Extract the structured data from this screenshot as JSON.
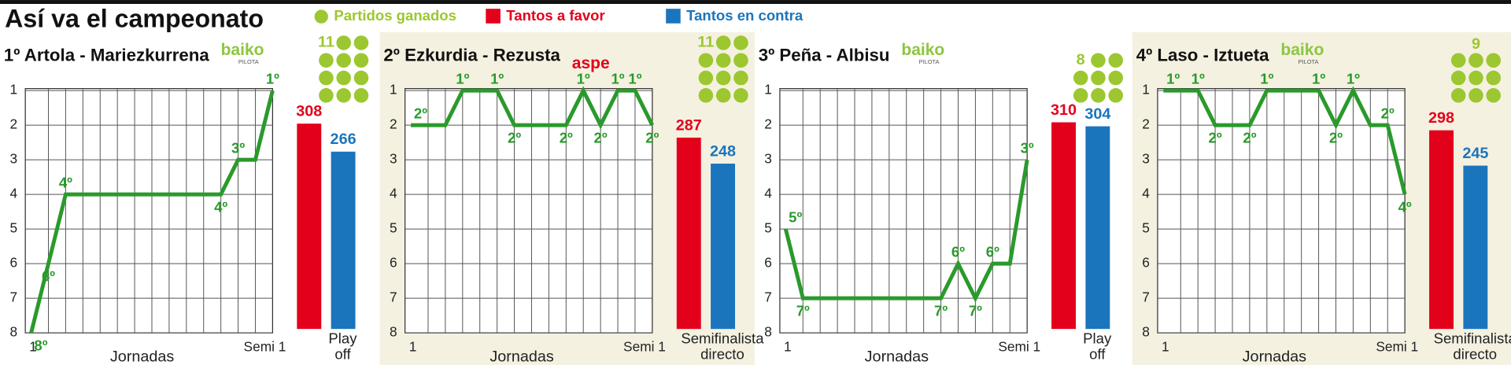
{
  "title": "Así va el campeonato",
  "legend": [
    {
      "name": "Partidos ganados",
      "color": "#9cc730"
    },
    {
      "name": "Tantos a favor",
      "color": "#e3001b"
    },
    {
      "name": "Tantos en contra",
      "color": "#1b75bc"
    }
  ],
  "chart_data": [
    {
      "type": "line",
      "title": "1º Artola - Mariezkurrena",
      "logo": "baiko",
      "logo_sub": "PILOTA",
      "categories": [
        "1",
        null,
        null,
        null,
        null,
        null,
        null,
        null,
        null,
        null,
        null,
        null,
        null,
        null,
        "Semi 1"
      ],
      "xlabel": "Jornadas",
      "ylim": [
        8,
        1
      ],
      "yticks": [
        1,
        2,
        3,
        4,
        5,
        6,
        7,
        8
      ],
      "grid": true,
      "series": [
        {
          "color": "#2a9a2b",
          "values": [
            8,
            6,
            4,
            4,
            4,
            4,
            4,
            4,
            4,
            4,
            4,
            4,
            3,
            3,
            1
          ],
          "value_labels": [
            "8º",
            "6º",
            "4º",
            null,
            null,
            null,
            null,
            null,
            null,
            null,
            null,
            "4º",
            "3º",
            null,
            "1º"
          ]
        }
      ],
      "wins": 11,
      "points_for": 308,
      "points_against": 266,
      "phase": "Play off"
    },
    {
      "type": "line",
      "title": "2º Ezkurdia - Rezusta",
      "logo": "aspe",
      "categories": [
        "1",
        null,
        null,
        null,
        null,
        null,
        null,
        null,
        null,
        null,
        null,
        null,
        null,
        null,
        "Semi 1"
      ],
      "xlabel": "Jornadas",
      "ylim": [
        8,
        1
      ],
      "yticks": [
        1,
        2,
        3,
        4,
        5,
        6,
        7,
        8
      ],
      "grid": true,
      "series": [
        {
          "color": "#2a9a2b",
          "values": [
            2,
            2,
            2,
            1,
            1,
            1,
            2,
            2,
            2,
            2,
            1,
            2,
            1,
            1,
            2
          ],
          "value_labels": [
            "2º",
            null,
            null,
            "1º",
            null,
            "1º",
            "2º",
            null,
            null,
            "2º",
            "1º",
            "2º",
            "1º",
            "1º",
            "2º"
          ]
        }
      ],
      "wins": 11,
      "points_for": 287,
      "points_against": 248,
      "phase": "Semifinalista directo"
    },
    {
      "type": "line",
      "title": "3º Peña - Albisu",
      "logo": "baiko",
      "logo_sub": "PILOTA",
      "categories": [
        "1",
        null,
        null,
        null,
        null,
        null,
        null,
        null,
        null,
        null,
        null,
        null,
        null,
        null,
        "Semi 1"
      ],
      "xlabel": "Jornadas",
      "ylim": [
        8,
        1
      ],
      "yticks": [
        1,
        2,
        3,
        4,
        5,
        6,
        7,
        8
      ],
      "grid": true,
      "series": [
        {
          "color": "#2a9a2b",
          "values": [
            5,
            7,
            7,
            7,
            7,
            7,
            7,
            7,
            7,
            7,
            6,
            7,
            6,
            6,
            3
          ],
          "value_labels": [
            "5º",
            "7º",
            null,
            null,
            null,
            null,
            null,
            null,
            null,
            "7º",
            "6º",
            "7º",
            "6º",
            null,
            "3º"
          ]
        }
      ],
      "wins": 8,
      "points_for": 310,
      "points_against": 304,
      "phase": "Play off"
    },
    {
      "type": "line",
      "title": "4º Laso - Iztueta",
      "logo": "baiko",
      "logo_sub": "PILOTA",
      "categories": [
        "1",
        null,
        null,
        null,
        null,
        null,
        null,
        null,
        null,
        null,
        null,
        null,
        null,
        null,
        "Semi 1"
      ],
      "xlabel": "Jornadas",
      "ylim": [
        8,
        1
      ],
      "yticks": [
        1,
        2,
        3,
        4,
        5,
        6,
        7,
        8
      ],
      "grid": true,
      "series": [
        {
          "color": "#2a9a2b",
          "values": [
            1,
            1,
            1,
            2,
            2,
            2,
            1,
            1,
            1,
            1,
            2,
            1,
            2,
            2,
            4
          ],
          "value_labels": [
            "1º",
            null,
            "1º",
            "2º",
            null,
            "2º",
            "1º",
            null,
            null,
            "1º",
            "2º",
            "1º",
            null,
            "2º",
            "4º"
          ]
        }
      ],
      "wins": 9,
      "points_for": 298,
      "points_against": 245,
      "phase": "Semifinalista directo"
    }
  ]
}
